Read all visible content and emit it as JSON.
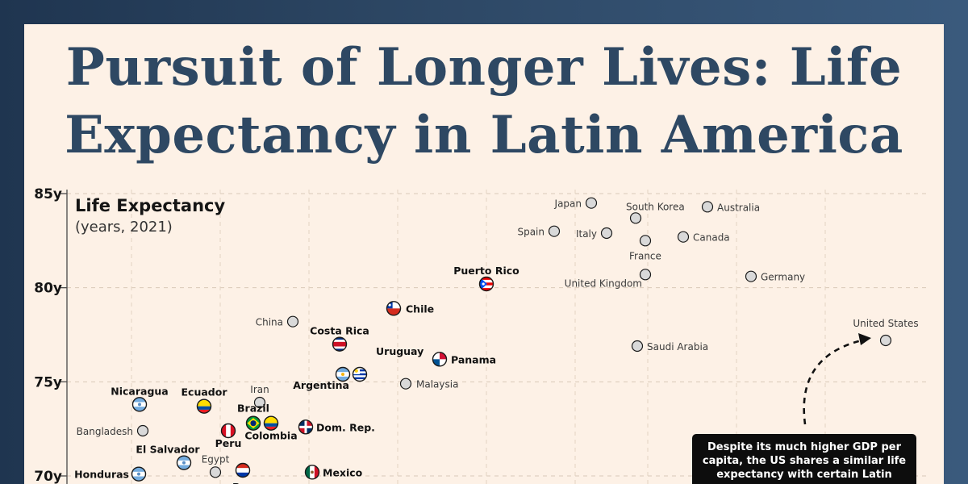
{
  "title": "Pursuit of Longer Lives: Life Expectancy in Latin America",
  "annotation": "Despite its much higher GDP per capita, the US shares a similar life expectancy with certain Latin",
  "colors": {
    "background": "#fdf1e6",
    "title": "#2e4863",
    "frame": "#2c4663",
    "grey_dot": "#d9d9d9",
    "callout": "#0d0d0d"
  },
  "chart_data": {
    "type": "scatter",
    "ylabel": "Life Expectancy",
    "ylabel_sub": "(years, 2021)",
    "y_ticks": [
      "85y",
      "80y",
      "75y",
      "70y"
    ],
    "y_tick_values": [
      85,
      80,
      75,
      70
    ],
    "ylim": [
      69.6,
      85
    ],
    "grid": true,
    "points": [
      {
        "name": "Japan",
        "y": 84.5,
        "group": "other"
      },
      {
        "name": "South Korea",
        "y": 83.7,
        "group": "other"
      },
      {
        "name": "Australia",
        "y": 84.3,
        "group": "other"
      },
      {
        "name": "Spain",
        "y": 83.0,
        "group": "other"
      },
      {
        "name": "Italy",
        "y": 82.9,
        "group": "other"
      },
      {
        "name": "Canada",
        "y": 82.7,
        "group": "other"
      },
      {
        "name": "France",
        "y": 82.5,
        "group": "other"
      },
      {
        "name": "United Kingdom",
        "y": 80.7,
        "group": "other"
      },
      {
        "name": "Germany",
        "y": 80.6,
        "group": "other"
      },
      {
        "name": "Puerto Rico",
        "y": 80.2,
        "group": "latin",
        "flag": "puerto-rico"
      },
      {
        "name": "Chile",
        "y": 78.9,
        "group": "latin",
        "flag": "chile"
      },
      {
        "name": "China",
        "y": 78.2,
        "group": "other"
      },
      {
        "name": "United States",
        "y": 77.2,
        "group": "other"
      },
      {
        "name": "Costa Rica",
        "y": 77.0,
        "group": "latin",
        "flag": "costa-rica"
      },
      {
        "name": "Saudi Arabia",
        "y": 76.9,
        "group": "other"
      },
      {
        "name": "Panama",
        "y": 76.2,
        "group": "latin",
        "flag": "panama"
      },
      {
        "name": "Uruguay",
        "y": 75.4,
        "group": "latin",
        "flag": "uruguay"
      },
      {
        "name": "Argentina",
        "y": 75.4,
        "group": "latin",
        "flag": "argentina"
      },
      {
        "name": "Malaysia",
        "y": 74.9,
        "group": "other"
      },
      {
        "name": "Nicaragua",
        "y": 73.8,
        "group": "latin",
        "flag": "nicaragua"
      },
      {
        "name": "Ecuador",
        "y": 73.7,
        "group": "latin",
        "flag": "ecuador"
      },
      {
        "name": "Iran",
        "y": 73.9,
        "group": "other"
      },
      {
        "name": "Brazil",
        "y": 72.8,
        "group": "latin",
        "flag": "brazil"
      },
      {
        "name": "Colombia",
        "y": 72.8,
        "group": "latin",
        "flag": "colombia"
      },
      {
        "name": "Dom. Rep.",
        "y": 72.6,
        "group": "latin",
        "flag": "dominican-republic"
      },
      {
        "name": "Bangladesh",
        "y": 72.4,
        "group": "other"
      },
      {
        "name": "Peru",
        "y": 72.4,
        "group": "latin",
        "flag": "peru"
      },
      {
        "name": "El Salvador",
        "y": 70.7,
        "group": "latin",
        "flag": "el-salvador"
      },
      {
        "name": "Egypt",
        "y": 70.2,
        "group": "other"
      },
      {
        "name": "Paraguay",
        "y": 70.3,
        "group": "latin",
        "flag": "paraguay"
      },
      {
        "name": "Mexico",
        "y": 70.2,
        "group": "latin",
        "flag": "mexico"
      },
      {
        "name": "Honduras",
        "y": 70.1,
        "group": "latin",
        "flag": "honduras"
      }
    ]
  }
}
